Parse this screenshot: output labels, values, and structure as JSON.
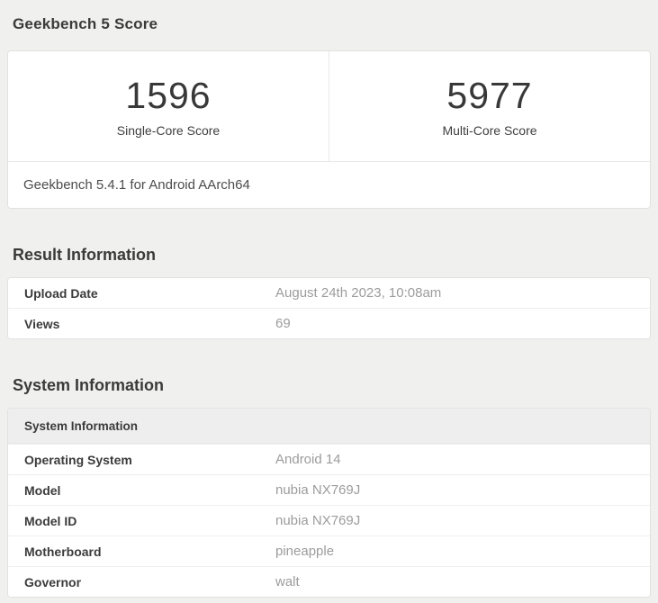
{
  "page": {
    "title": "Geekbench 5 Score"
  },
  "scores": {
    "single": {
      "value": "1596",
      "label": "Single-Core Score"
    },
    "multi": {
      "value": "5977",
      "label": "Multi-Core Score"
    },
    "footnote": "Geekbench 5.4.1 for Android AArch64"
  },
  "result_information": {
    "heading": "Result Information",
    "rows": [
      {
        "label": "Upload Date",
        "value": "August 24th 2023, 10:08am"
      },
      {
        "label": "Views",
        "value": "69"
      }
    ]
  },
  "system_information": {
    "heading": "System Information",
    "table_header": "System Information",
    "rows": [
      {
        "label": "Operating System",
        "value": "Android 14"
      },
      {
        "label": "Model",
        "value": "nubia NX769J"
      },
      {
        "label": "Model ID",
        "value": "nubia NX769J"
      },
      {
        "label": "Motherboard",
        "value": "pineapple"
      },
      {
        "label": "Governor",
        "value": "walt"
      }
    ]
  },
  "colors": {
    "page_background": "#f0f0ef",
    "card_background": "#ffffff",
    "card_border": "#e2e2e1",
    "heading_text": "#3a3a3a",
    "label_text": "#3b3b3b",
    "value_text": "#9c9c9c",
    "table_header_background": "#eeeeee"
  }
}
